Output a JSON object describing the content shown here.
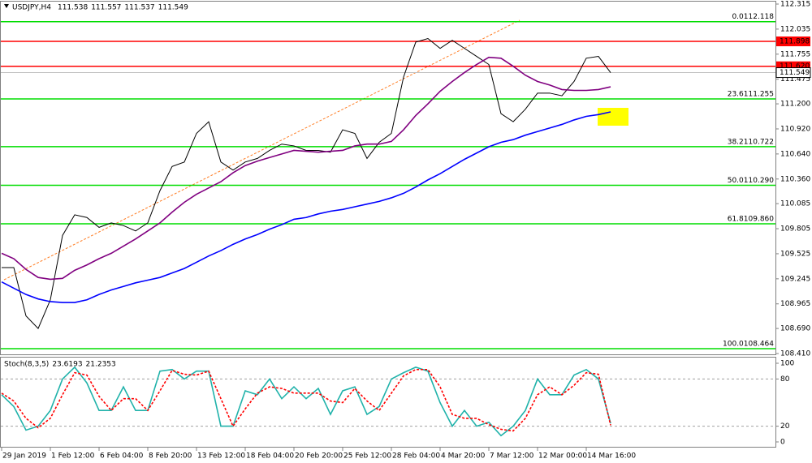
{
  "chart_data": [
    {
      "type": "line",
      "title": "USDJPY,H4",
      "ohlc": [
        111.538,
        111.557,
        111.537,
        111.549
      ],
      "categories": [
        "29 Jan 2019",
        null,
        null,
        null,
        "1 Feb 12:00",
        null,
        null,
        null,
        "6 Feb 04:00",
        null,
        null,
        null,
        "8 Feb 20:00",
        null,
        null,
        null,
        "13 Feb 12:00",
        null,
        null,
        null,
        "18 Feb 04:00",
        null,
        null,
        null,
        "20 Feb 20:00",
        null,
        null,
        null,
        "25 Feb 12:00",
        null,
        null,
        null,
        "28 Feb 04:00",
        null,
        null,
        null,
        "4 Mar 20:00",
        null,
        null,
        null,
        "7 Mar 12:00",
        null,
        null,
        null,
        "12 Mar 00:00",
        null,
        null,
        null,
        "14 Mar 16:00",
        null,
        null
      ],
      "series": [
        {
          "color": "#000000",
          "values": [
            109.37,
            109.37,
            108.83,
            108.69,
            109.01,
            109.73,
            109.96,
            109.93,
            109.82,
            109.87,
            109.84,
            109.78,
            109.87,
            110.23,
            110.5,
            110.55,
            110.87,
            111.0,
            110.55,
            110.46,
            110.55,
            110.59,
            110.68,
            110.75,
            110.73,
            110.68,
            110.68,
            110.66,
            110.91,
            110.87,
            110.59,
            110.77,
            110.87,
            111.5,
            111.89,
            111.93,
            111.82,
            111.91,
            111.82,
            111.73,
            111.64,
            111.09,
            111.0,
            111.14,
            111.32,
            111.32,
            111.29,
            111.45,
            111.71,
            111.73,
            111.549
          ]
        },
        {
          "color": "#800080",
          "values": [
            109.53,
            109.47,
            109.35,
            109.26,
            109.24,
            109.25,
            109.34,
            109.4,
            109.47,
            109.53,
            109.61,
            109.69,
            109.78,
            109.87,
            109.99,
            110.1,
            110.19,
            110.26,
            110.33,
            110.43,
            110.51,
            110.56,
            110.6,
            110.64,
            110.68,
            110.67,
            110.66,
            110.67,
            110.68,
            110.73,
            110.75,
            110.75,
            110.78,
            110.91,
            111.07,
            111.2,
            111.34,
            111.45,
            111.55,
            111.64,
            111.72,
            111.71,
            111.62,
            111.52,
            111.45,
            111.41,
            111.36,
            111.35,
            111.35,
            111.36,
            111.39
          ]
        },
        {
          "color": "#0000ff",
          "values": [
            109.21,
            109.14,
            109.07,
            109.02,
            108.99,
            108.98,
            108.98,
            109.01,
            109.07,
            109.12,
            109.16,
            109.2,
            109.23,
            109.26,
            109.31,
            109.36,
            109.43,
            109.5,
            109.56,
            109.63,
            109.69,
            109.74,
            109.8,
            109.85,
            109.91,
            109.93,
            109.97,
            110.0,
            110.02,
            110.05,
            110.08,
            110.11,
            110.15,
            110.2,
            110.27,
            110.35,
            110.42,
            110.5,
            110.58,
            110.65,
            110.72,
            110.77,
            110.8,
            110.85,
            110.89,
            110.93,
            110.97,
            111.02,
            111.06,
            111.08,
            111.11
          ]
        }
      ],
      "ylim": [
        108.41,
        112.315
      ],
      "yticks": [
        {
          "value": 108.41,
          "label": "108.410"
        },
        {
          "value": 108.69,
          "label": "108.690"
        },
        108.965,
        109.245,
        109.525,
        109.805,
        110.085,
        {
          "value": 110.36,
          "label": "110.360"
        },
        {
          "value": 110.64,
          "label": "110.640"
        },
        {
          "value": 110.92,
          "label": "110.920"
        },
        {
          "value": 111.2,
          "label": "111.200"
        },
        111.475,
        111.755,
        112.035,
        112.315
      ],
      "fibonacci": {
        "color": "#00dd00",
        "levels": [
          "0.0",
          "23.6",
          "38.2",
          "50.0",
          "61.8",
          "100.0"
        ],
        "values": [
          112.118,
          111.255,
          110.722,
          110.29,
          109.86,
          108.464
        ],
        "value_labels": [
          "112.118",
          "111.255",
          "110.722",
          "110.290",
          "109.860",
          "108.464"
        ]
      },
      "levels": {
        "color": "#ff0000",
        "values": [
          111.898,
          111.62
        ],
        "value_labels": [
          "111.898",
          "111.620"
        ]
      },
      "last_price": 111.549
    },
    {
      "type": "line",
      "title": "Stoch(8,3,5)",
      "last_values": [
        23.6193,
        21.2353
      ],
      "series": [
        {
          "color": "#20b2aa",
          "values": [
            60,
            45,
            15,
            20,
            40,
            80,
            95,
            75,
            40,
            40,
            70,
            40,
            40,
            90,
            92,
            80,
            90,
            90,
            20,
            20,
            65,
            60,
            80,
            55,
            70,
            55,
            68,
            35,
            65,
            70,
            35,
            45,
            80,
            88,
            95,
            90,
            50,
            20,
            40,
            20,
            25,
            8,
            20,
            40,
            80,
            60,
            60,
            85,
            92,
            80,
            23.6
          ]
        },
        {
          "color": "#ff0000",
          "dashed": true,
          "values": [
            62,
            52,
            30,
            18,
            30,
            60,
            88,
            85,
            58,
            40,
            55,
            55,
            40,
            65,
            91,
            86,
            85,
            90,
            55,
            20,
            42,
            62,
            70,
            68,
            62,
            62,
            62,
            52,
            50,
            68,
            52,
            40,
            62,
            84,
            92,
            92,
            70,
            35,
            30,
            30,
            22,
            16,
            14,
            30,
            60,
            70,
            60,
            72,
            88,
            86,
            21.2
          ]
        }
      ],
      "ylim": [
        0,
        100
      ],
      "yticks": [
        0,
        20,
        80,
        100
      ],
      "levels": [
        20,
        80
      ]
    }
  ]
}
